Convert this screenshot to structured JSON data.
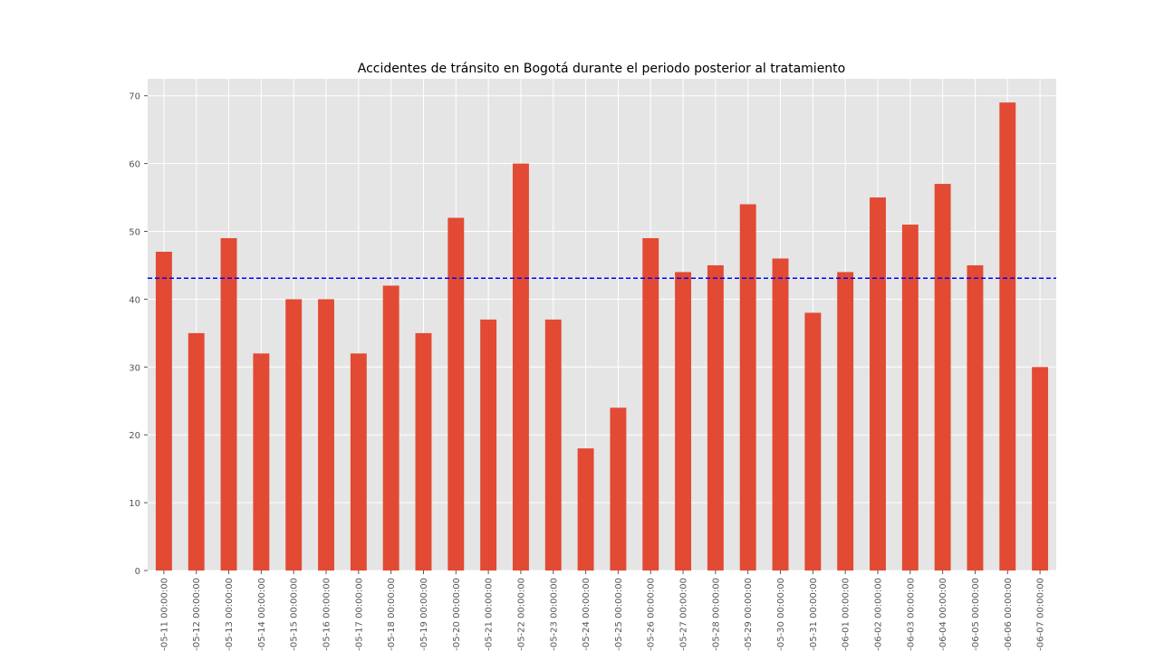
{
  "chart_data": {
    "type": "bar",
    "title": "Accidentes de tránsito en Bogotá durante el periodo posterior al tratamiento",
    "xlabel": "",
    "ylabel": "",
    "ylim": [
      0,
      72.5
    ],
    "yticks": [
      0,
      10,
      20,
      30,
      40,
      50,
      60,
      70
    ],
    "grid": true,
    "legend": "none",
    "bar_color": "#E24A33",
    "background_color": "#E5E5E5",
    "grid_color": "#FFFFFF",
    "reference_line": {
      "value": 43.1,
      "color": "#0000FF",
      "style": "dashed"
    },
    "categories": [
      "-05-11 00:00:00",
      "-05-12 00:00:00",
      "-05-13 00:00:00",
      "-05-14 00:00:00",
      "-05-15 00:00:00",
      "-05-16 00:00:00",
      "-05-17 00:00:00",
      "-05-18 00:00:00",
      "-05-19 00:00:00",
      "-05-20 00:00:00",
      "-05-21 00:00:00",
      "-05-22 00:00:00",
      "-05-23 00:00:00",
      "-05-24 00:00:00",
      "-05-25 00:00:00",
      "-05-26 00:00:00",
      "-05-27 00:00:00",
      "-05-28 00:00:00",
      "-05-29 00:00:00",
      "-05-30 00:00:00",
      "-05-31 00:00:00",
      "-06-01 00:00:00",
      "-06-02 00:00:00",
      "-06-03 00:00:00",
      "-06-04 00:00:00",
      "-06-05 00:00:00",
      "-06-06 00:00:00",
      "-06-07 00:00:00"
    ],
    "values": [
      47,
      35,
      49,
      32,
      40,
      40,
      32,
      42,
      35,
      52,
      37,
      60,
      37,
      18,
      24,
      49,
      44,
      45,
      54,
      46,
      38,
      44,
      55,
      51,
      57,
      45,
      69,
      30
    ]
  }
}
